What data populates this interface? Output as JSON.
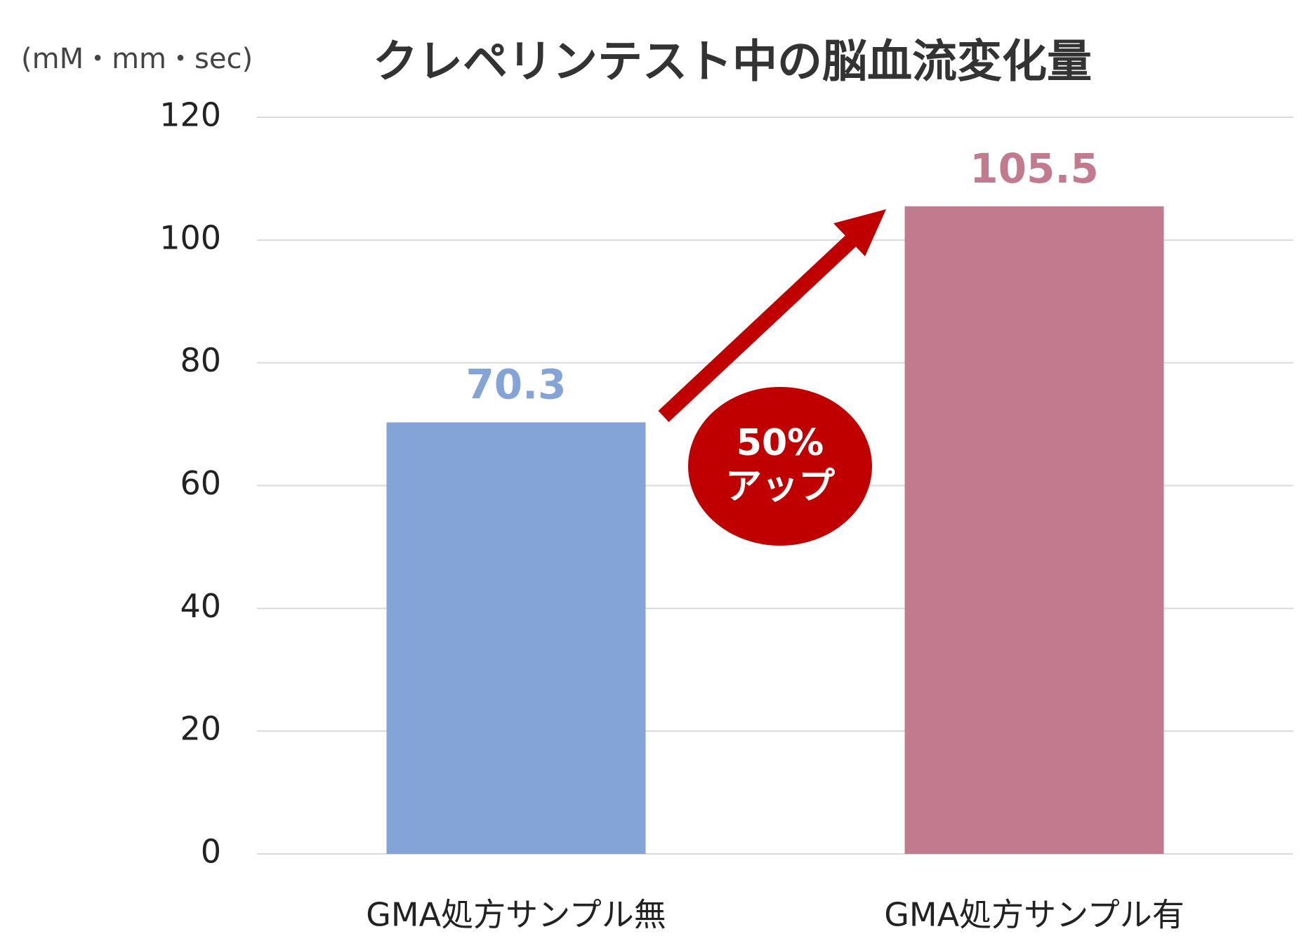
{
  "chart_data": {
    "type": "bar",
    "title": "クレペリンテスト中の脳血流変化量",
    "y_unit": "(mM・mm・sec)",
    "categories": [
      "GMA処方サンプル無",
      "GMA処方サンプル有"
    ],
    "values": [
      70.3,
      105.5
    ],
    "colors": [
      "#84a3d7",
      "#c27b8e"
    ],
    "ylim": [
      0,
      120
    ],
    "yticks": [
      0,
      20,
      40,
      60,
      80,
      100,
      120
    ],
    "grid": true,
    "annotation": {
      "lines": [
        "50%",
        "アップ"
      ],
      "color": "#c00000"
    }
  }
}
